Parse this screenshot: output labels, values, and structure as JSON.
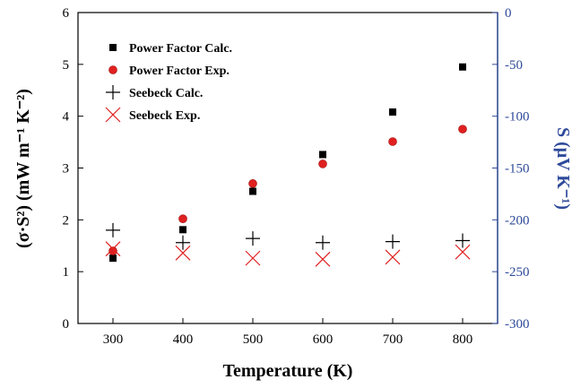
{
  "chart_data": {
    "type": "scatter",
    "x_axis": {
      "label": "Temperature (K)",
      "ticks": [
        300,
        400,
        500,
        600,
        700,
        800
      ],
      "xlim": [
        250,
        850
      ]
    },
    "y_left": {
      "label": "(σ·S²) (mW m⁻¹ K⁻²)",
      "ticks": [
        0,
        1,
        2,
        3,
        4,
        5,
        6
      ],
      "ylim": [
        0,
        6
      ]
    },
    "y_right": {
      "label": "S (μV K⁻¹)",
      "ticks": [
        0,
        -50,
        -100,
        -150,
        -200,
        -250,
        -300
      ],
      "ylim": [
        -300,
        0
      ],
      "color": "#2e4a9a"
    },
    "series": [
      {
        "name": "Power Factor Calc.",
        "axis": "left",
        "marker": "square",
        "color": "#000000",
        "points": [
          [
            300,
            1.26
          ],
          [
            400,
            1.81
          ],
          [
            500,
            2.55
          ],
          [
            600,
            3.26
          ],
          [
            700,
            4.08
          ],
          [
            800,
            4.95
          ]
        ]
      },
      {
        "name": "Power Factor Exp.",
        "axis": "left",
        "marker": "circle",
        "color": "#e02020",
        "points": [
          [
            300,
            1.4
          ],
          [
            400,
            2.02
          ],
          [
            500,
            2.7
          ],
          [
            600,
            3.08
          ],
          [
            700,
            3.51
          ],
          [
            800,
            3.75
          ]
        ]
      },
      {
        "name": "Seebeck Calc.",
        "axis": "right",
        "marker": "plus",
        "color": "#000000",
        "points": [
          [
            300,
            -210
          ],
          [
            400,
            -222
          ],
          [
            500,
            -218
          ],
          [
            600,
            -222
          ],
          [
            700,
            -221
          ],
          [
            800,
            -220
          ]
        ]
      },
      {
        "name": "Seebeck Exp.",
        "axis": "right",
        "marker": "x",
        "color": "#e02020",
        "points": [
          [
            300,
            -228
          ],
          [
            400,
            -232
          ],
          [
            500,
            -237
          ],
          [
            600,
            -238
          ],
          [
            700,
            -236
          ],
          [
            800,
            -231
          ]
        ]
      }
    ],
    "legend_position": "top-left",
    "grid": false
  }
}
